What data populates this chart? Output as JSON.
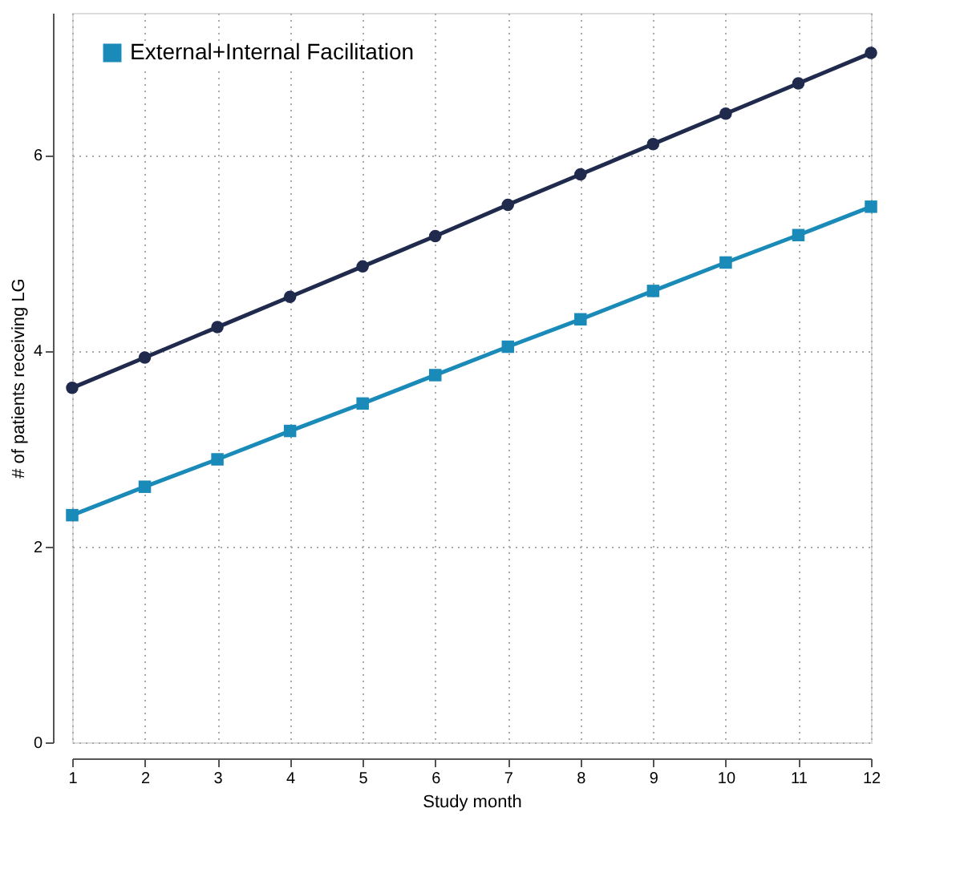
{
  "chart_data": {
    "type": "line",
    "xlabel": "Study month",
    "ylabel": "# of patients receiving LG",
    "x": [
      1,
      2,
      3,
      4,
      5,
      6,
      7,
      8,
      9,
      10,
      11,
      12
    ],
    "xlim": [
      1,
      12
    ],
    "xticks": [
      1,
      2,
      3,
      4,
      5,
      6,
      7,
      8,
      9,
      10,
      11,
      12
    ],
    "ylim": [
      0,
      7.45
    ],
    "yticks": [
      0,
      2,
      4,
      6
    ],
    "grid": true,
    "legend": "top left",
    "line_style": "solid",
    "series": [
      {
        "color": "#1f2a4d",
        "marker": "circle",
        "values": [
          3.62,
          3.93,
          4.24,
          4.55,
          4.86,
          5.17,
          5.49,
          5.8,
          6.11,
          6.42,
          6.73,
          7.04
        ]
      },
      {
        "name": "External+Internal Facilitation",
        "color": "#1a8ab8",
        "marker": "square",
        "values": [
          2.32,
          2.61,
          2.89,
          3.18,
          3.46,
          3.75,
          4.04,
          4.32,
          4.61,
          4.9,
          5.18,
          5.47
        ]
      }
    ]
  }
}
